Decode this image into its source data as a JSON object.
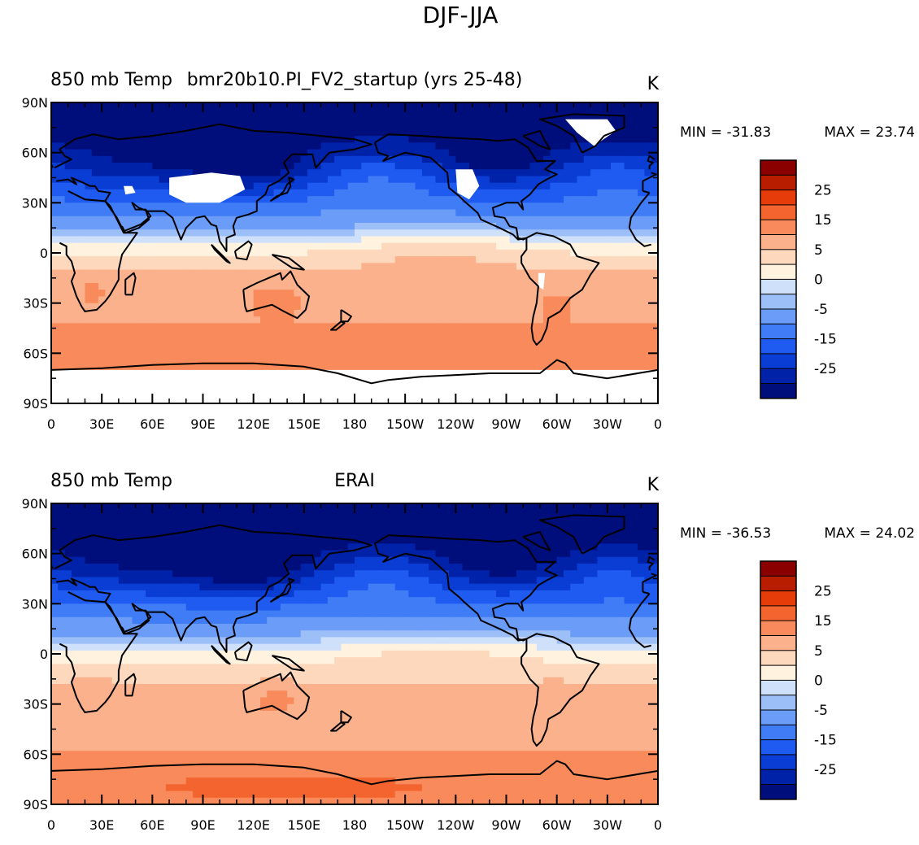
{
  "figure_title": "DJF-JJA",
  "chart_data": [
    {
      "type": "heatmap",
      "variable": "850 mb Temp",
      "case": "bmr20b10.PI_FV2_startup (yrs 25-48)",
      "units": "K",
      "min_label": "MIN = -31.83",
      "max_label": "MAX =  23.74",
      "lat_ticks": [
        "90N",
        "60N",
        "30N",
        "0",
        "30S",
        "60S",
        "90S"
      ],
      "lon_ticks": [
        "0",
        "30E",
        "60E",
        "90E",
        "120E",
        "150E",
        "180",
        "150W",
        "120W",
        "90W",
        "60W",
        "30W",
        "0"
      ]
    },
    {
      "type": "heatmap",
      "variable": "850 mb Temp",
      "case": "ERAI",
      "units": "K",
      "min_label": "MIN = -36.53",
      "max_label": "MAX =  24.02",
      "lat_ticks": [
        "90N",
        "60N",
        "30N",
        "0",
        "30S",
        "60S",
        "90S"
      ],
      "lon_ticks": [
        "0",
        "30E",
        "60E",
        "90E",
        "120E",
        "150E",
        "180",
        "150W",
        "120W",
        "90W",
        "60W",
        "30W",
        "0"
      ]
    }
  ],
  "colorbar": {
    "levels": [
      -35,
      -30,
      -25,
      -20,
      -15,
      -10,
      -5,
      -2.5,
      0,
      2.5,
      5,
      10,
      15,
      20,
      25,
      30
    ],
    "colors": [
      "#000e7c",
      "#0022a8",
      "#0a3dd4",
      "#1f5bf0",
      "#3f7cf5",
      "#6a9cf8",
      "#9dbff8",
      "#cfe0fa",
      "#fff3e0",
      "#fdd8bd",
      "#fbb18c",
      "#f88a5b",
      "#f4642f",
      "#e63c0a",
      "#b81d00",
      "#8a0000"
    ],
    "tick_labels": [
      "25",
      "15",
      "5",
      "0",
      "-5",
      "-15",
      "-25"
    ]
  },
  "colors": {
    "land_outline": "#000000",
    "missing": "#ffffff"
  }
}
